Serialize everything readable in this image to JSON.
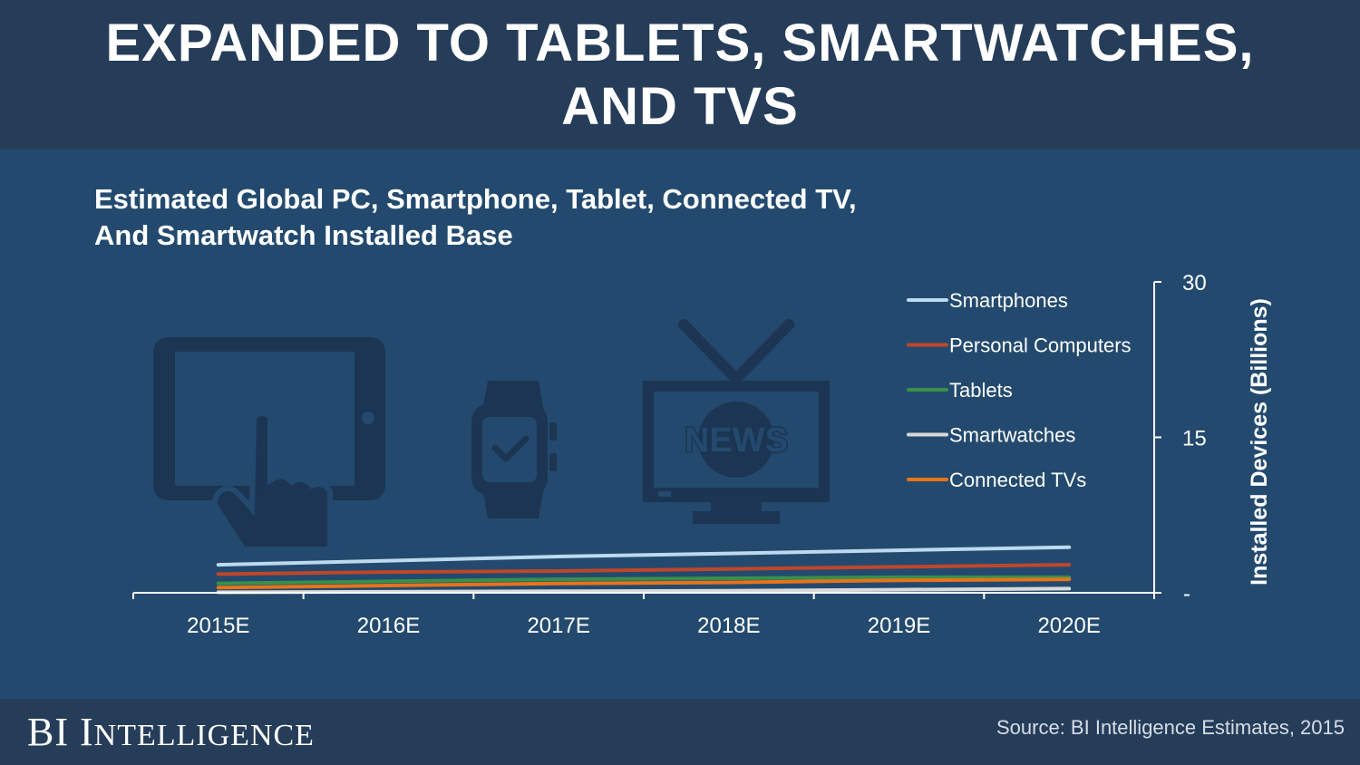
{
  "header": {
    "title_line1": "EXPANDED TO TABLETS, SMARTWATCHES,",
    "title_line2": "AND TVS"
  },
  "subtitle": {
    "line1": "Estimated Global PC, Smartphone, Tablet, Connected TV,",
    "line2": "And Smartwatch Installed Base"
  },
  "icons": {
    "tv_label": "NEWS"
  },
  "footer": {
    "brand_b": "B",
    "brand_i": "I",
    "brand_word_cap": "I",
    "brand_word_rest": "NTELLIGENCE",
    "source": "Source: BI Intelligence Estimates, 2015"
  },
  "colors": {
    "background": "#234a6e",
    "header": "#263d59",
    "icon_fill": "#1b3552"
  },
  "chart_data": {
    "type": "line",
    "title": "Estimated Global PC, Smartphone, Tablet, Connected TV, And Smartwatch Installed Base",
    "xlabel": "",
    "ylabel": "Installed Devices (Billions)",
    "categories": [
      "2015E",
      "2016E",
      "2017E",
      "2018E",
      "2019E",
      "2020E"
    ],
    "ylim": [
      0,
      30
    ],
    "y_ticks": [
      {
        "value": 30,
        "label": "30"
      },
      {
        "value": 15,
        "label": "15"
      },
      {
        "value": 0,
        "label": "-"
      }
    ],
    "y_axis_side": "right",
    "legend_position": "top-right",
    "series": [
      {
        "name": "Smartphones",
        "color": "#bcd9ee",
        "values": [
          2.7,
          3.1,
          3.5,
          3.8,
          4.1,
          4.4
        ]
      },
      {
        "name": "Personal Computers",
        "color": "#c0462a",
        "values": [
          1.8,
          2.0,
          2.1,
          2.3,
          2.5,
          2.7
        ]
      },
      {
        "name": "Tablets",
        "color": "#3a8f4a",
        "values": [
          0.9,
          1.1,
          1.3,
          1.4,
          1.5,
          1.5
        ]
      },
      {
        "name": "Smartwatches",
        "color": "#d9d9d9",
        "values": [
          0.05,
          0.1,
          0.15,
          0.2,
          0.3,
          0.4
        ]
      },
      {
        "name": "Connected TVs",
        "color": "#e8731b",
        "values": [
          0.5,
          0.7,
          0.9,
          1.0,
          1.2,
          1.3
        ]
      }
    ]
  }
}
